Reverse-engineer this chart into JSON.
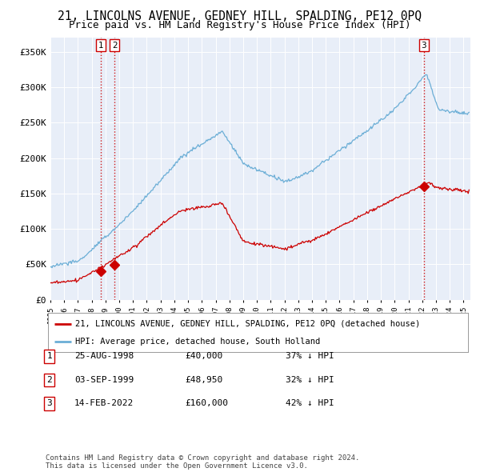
{
  "title": "21, LINCOLNS AVENUE, GEDNEY HILL, SPALDING, PE12 0PQ",
  "subtitle": "Price paid vs. HM Land Registry's House Price Index (HPI)",
  "ylim": [
    0,
    370000
  ],
  "xlim_start": 1995.0,
  "xlim_end": 2025.5,
  "yticks": [
    0,
    50000,
    100000,
    150000,
    200000,
    250000,
    300000,
    350000
  ],
  "ytick_labels": [
    "£0",
    "£50K",
    "£100K",
    "£150K",
    "£200K",
    "£250K",
    "£300K",
    "£350K"
  ],
  "hpi_color": "#6baed6",
  "price_color": "#cc0000",
  "background_color": "#e8eef8",
  "grid_color": "#ffffff",
  "transaction_dates": [
    1998.65,
    1999.67,
    2022.12
  ],
  "transaction_prices": [
    40000,
    48950,
    160000
  ],
  "transaction_labels": [
    "1",
    "2",
    "3"
  ],
  "vline_color": "#cc0000",
  "legend_label_price": "21, LINCOLNS AVENUE, GEDNEY HILL, SPALDING, PE12 0PQ (detached house)",
  "legend_label_hpi": "HPI: Average price, detached house, South Holland",
  "table_data": [
    [
      "1",
      "25-AUG-1998",
      "£40,000",
      "37% ↓ HPI"
    ],
    [
      "2",
      "03-SEP-1999",
      "£48,950",
      "32% ↓ HPI"
    ],
    [
      "3",
      "14-FEB-2022",
      "£160,000",
      "42% ↓ HPI"
    ]
  ],
  "footer": "Contains HM Land Registry data © Crown copyright and database right 2024.\nThis data is licensed under the Open Government Licence v3.0.",
  "title_fontsize": 10.5,
  "subtitle_fontsize": 9,
  "tick_fontsize": 8,
  "legend_fontsize": 7.5,
  "table_fontsize": 8,
  "footer_fontsize": 6.5
}
